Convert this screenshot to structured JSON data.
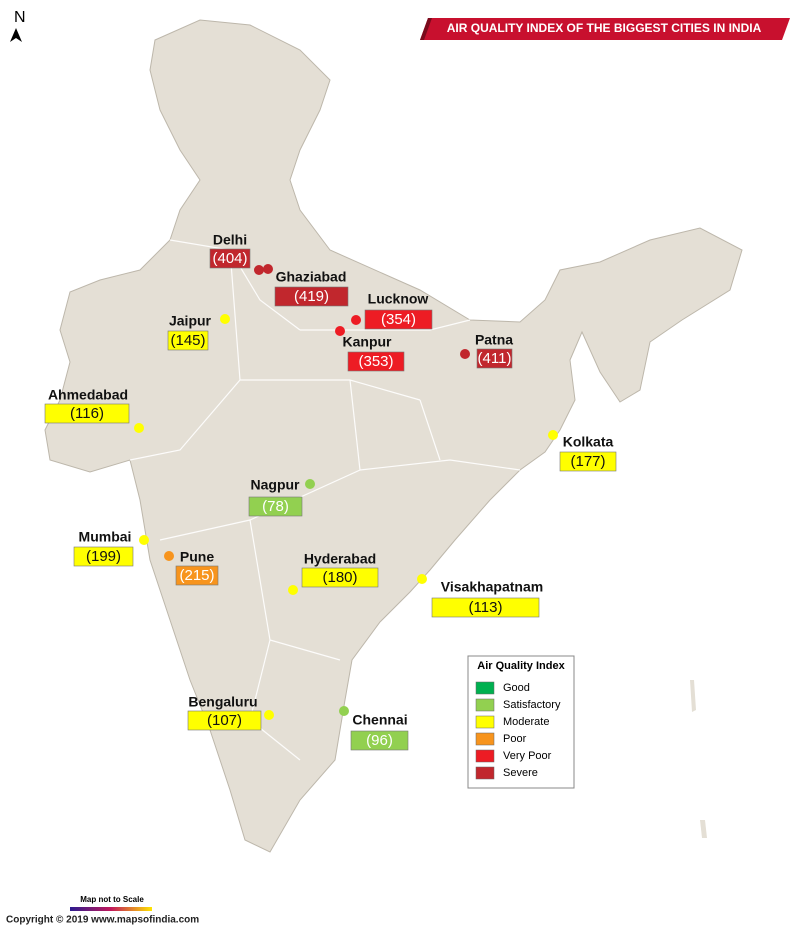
{
  "header": {
    "title": "AIR QUALITY INDEX OF THE BIGGEST CITIES IN INDIA",
    "north": "N"
  },
  "cities": [
    {
      "name": "Delhi",
      "aqi": "(404)",
      "color": "#c1272d"
    },
    {
      "name": "Ghaziabad",
      "aqi": "(419)",
      "color": "#c1272d"
    },
    {
      "name": "Lucknow",
      "aqi": "(354)",
      "color": "#ed1c24"
    },
    {
      "name": "Kanpur",
      "aqi": "(353)",
      "color": "#ed1c24"
    },
    {
      "name": "Patna",
      "aqi": "(411)",
      "color": "#c1272d"
    },
    {
      "name": "Jaipur",
      "aqi": "(145)",
      "color": "#ffff00"
    },
    {
      "name": "Ahmedabad",
      "aqi": "(116)",
      "color": "#ffff00"
    },
    {
      "name": "Kolkata",
      "aqi": "(177)",
      "color": "#ffff00"
    },
    {
      "name": "Nagpur",
      "aqi": "(78)",
      "color": "#92d050"
    },
    {
      "name": "Mumbai",
      "aqi": "(199)",
      "color": "#ffff00"
    },
    {
      "name": "Pune",
      "aqi": "(215)",
      "color": "#f7941d"
    },
    {
      "name": "Hyderabad",
      "aqi": "(180)",
      "color": "#ffff00"
    },
    {
      "name": "Visakhapatnam",
      "aqi": "(113)",
      "color": "#ffff00"
    },
    {
      "name": "Bengaluru",
      "aqi": "(107)",
      "color": "#ffff00"
    },
    {
      "name": "Chennai",
      "aqi": "(96)",
      "color": "#92d050"
    }
  ],
  "legend": {
    "title": "Air Quality Index",
    "items": [
      {
        "label": "Good",
        "color": "#00b050"
      },
      {
        "label": "Satisfactory",
        "color": "#92d050"
      },
      {
        "label": "Moderate",
        "color": "#ffff00"
      },
      {
        "label": "Poor",
        "color": "#f7941d"
      },
      {
        "label": "Very Poor",
        "color": "#ed1c24"
      },
      {
        "label": "Severe",
        "color": "#c1272d"
      }
    ]
  },
  "footer": {
    "scale_note": "Map not to Scale",
    "copyright": "Copyright © 2019 www.mapsofindia.com"
  }
}
